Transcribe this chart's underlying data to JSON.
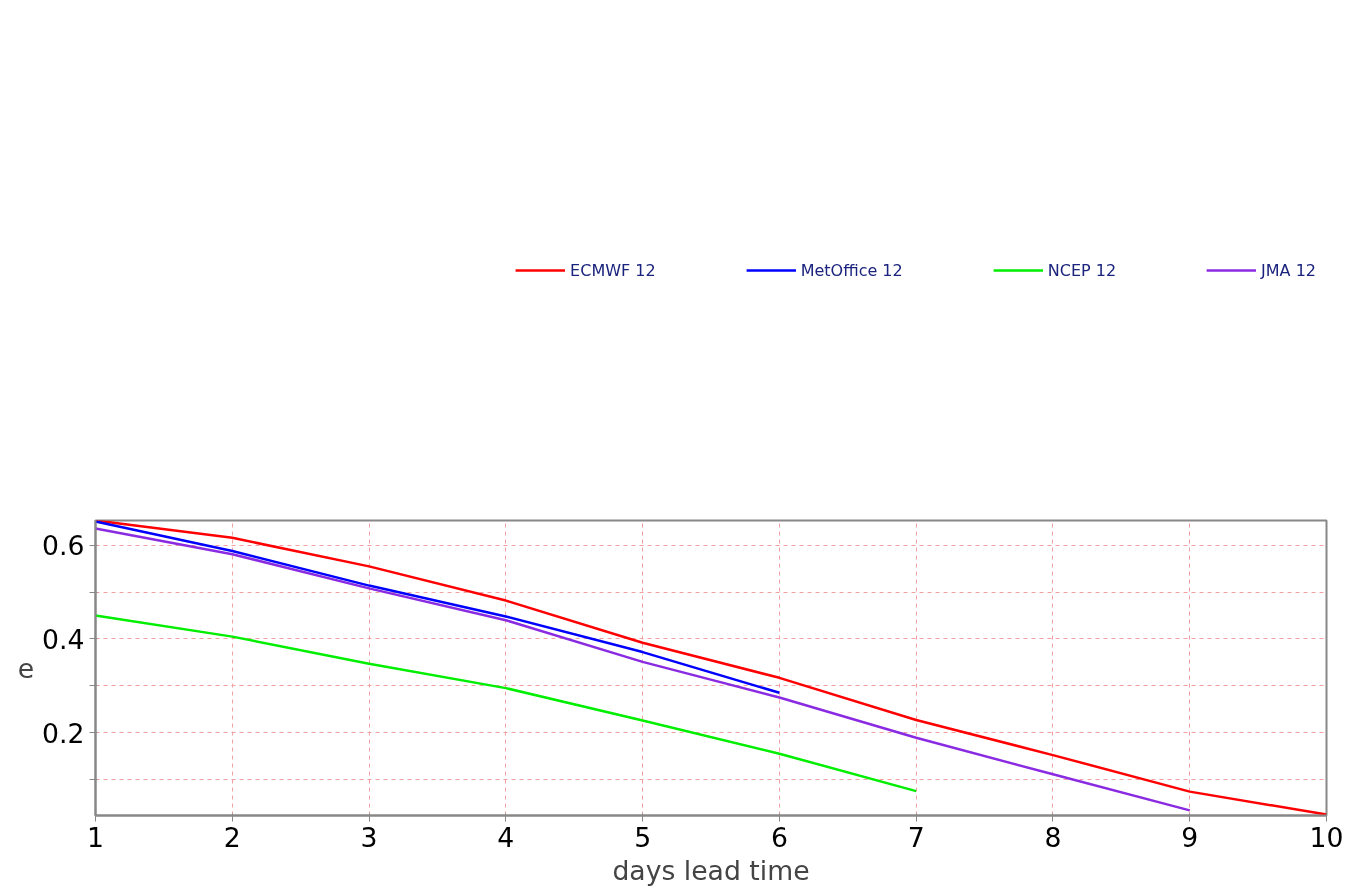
{
  "chart_data": {
    "type": "line",
    "xlabel": "days lead time",
    "ylabel": "e",
    "x": [
      1,
      2,
      3,
      4,
      5,
      6,
      7,
      8,
      9,
      10
    ],
    "series": [
      {
        "name": "ECMWF 12",
        "color": "#ff0000",
        "values": [
          0.653,
          0.616,
          0.555,
          0.482,
          0.392,
          0.317,
          0.227,
          0.152,
          0.074,
          0.025
        ]
      },
      {
        "name": "MetOffice 12",
        "color": "#0000ff",
        "values": [
          0.651,
          0.588,
          0.514,
          0.448,
          0.372,
          0.285,
          null,
          null,
          null,
          null
        ]
      },
      {
        "name": "NCEP 12",
        "color": "#00ee00",
        "values": [
          0.45,
          0.405,
          0.347,
          0.295,
          0.226,
          0.155,
          0.075,
          null,
          null,
          null
        ]
      },
      {
        "name": "JMA 12",
        "color": "#8a2be2",
        "values": [
          0.636,
          0.581,
          0.508,
          0.44,
          0.351,
          0.275,
          0.189,
          0.111,
          0.034,
          null
        ]
      }
    ],
    "xlim": [
      1,
      10
    ],
    "ylim": [
      0.023,
      0.653
    ],
    "xticks": [
      1,
      2,
      3,
      4,
      5,
      6,
      7,
      8,
      9,
      10
    ],
    "yticks": [
      {
        "value": 0.1,
        "label": null
      },
      0.2,
      {
        "value": 0.3,
        "label": null
      },
      0.4,
      {
        "value": 0.5,
        "label": null
      },
      0.6
    ],
    "grid": true,
    "legend": "top",
    "line_style": "solid",
    "marker": "none"
  }
}
